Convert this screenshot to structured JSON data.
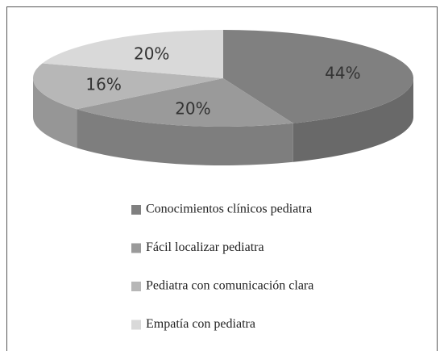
{
  "chart_data": {
    "type": "pie",
    "categories": [
      "Conocimientos clínicos pediatra",
      "Fácil localizar pediatra",
      "Pediatra con comunicación clara",
      "Empatía con pediatra"
    ],
    "values": [
      44,
      20,
      16,
      20
    ],
    "value_labels": [
      "44%",
      "20%",
      "16%",
      "20%"
    ],
    "colors": [
      "#808080",
      "#9a9a9a",
      "#b7b7b7",
      "#d9d9d9"
    ],
    "legend": "bottom"
  }
}
